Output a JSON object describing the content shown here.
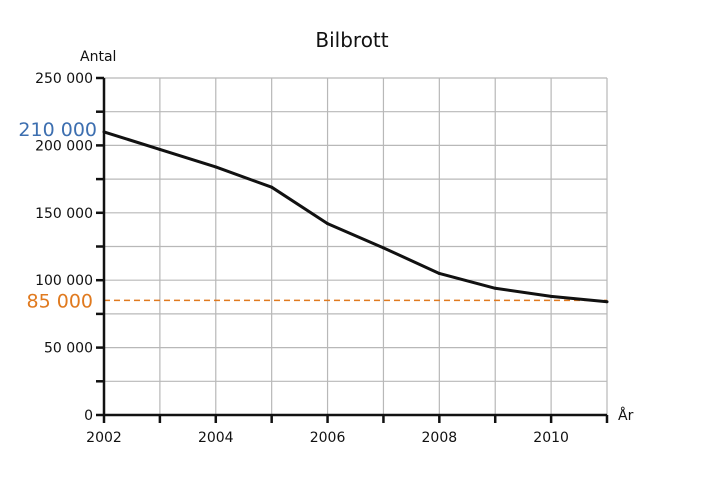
{
  "chart_data": {
    "type": "line",
    "title": "Bilbrott",
    "ylabel": "Antal",
    "xlabel": "År",
    "xlim": [
      2002,
      2011
    ],
    "ylim": [
      0,
      250000
    ],
    "grid": true,
    "x_ticks": [
      2002,
      2003,
      2004,
      2005,
      2006,
      2007,
      2008,
      2009,
      2010,
      2011
    ],
    "x_tick_labels": [
      {
        "x": 2002,
        "label": "2002"
      },
      {
        "x": 2004,
        "label": "2004"
      },
      {
        "x": 2006,
        "label": "2006"
      },
      {
        "x": 2008,
        "label": "2008"
      },
      {
        "x": 2010,
        "label": "2010"
      }
    ],
    "y_ticks": [
      0,
      25000,
      50000,
      75000,
      100000,
      125000,
      150000,
      175000,
      200000,
      225000,
      250000
    ],
    "y_tick_labels": [
      {
        "y": 0,
        "label": "0"
      },
      {
        "y": 50000,
        "label": "50 000"
      },
      {
        "y": 100000,
        "label": "100 000"
      },
      {
        "y": 150000,
        "label": "150 000"
      },
      {
        "y": 200000,
        "label": "200 000"
      },
      {
        "y": 250000,
        "label": "250 000"
      }
    ],
    "series": [
      {
        "x": [
          2002,
          2003,
          2004,
          2005,
          2006,
          2007,
          2008,
          2009,
          2010,
          2011
        ],
        "values": [
          210000,
          197000,
          184000,
          169000,
          142000,
          124000,
          105000,
          94000,
          88000,
          84000
        ],
        "color": "#111111"
      }
    ],
    "reference_lines": [
      {
        "y": 85000,
        "label": "85 000",
        "color": "#e07a1f",
        "style": "dashed"
      }
    ],
    "annotations": [
      {
        "y": 210000,
        "label": "210 000",
        "color": "#3d6fb0"
      }
    ]
  }
}
